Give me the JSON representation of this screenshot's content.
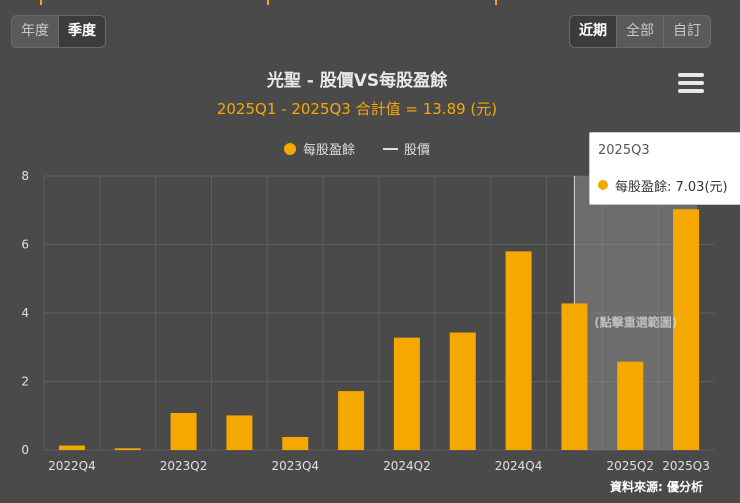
{
  "period_toggle": {
    "items": [
      "年度",
      "季度"
    ],
    "active": 1
  },
  "range_toggle": {
    "items": [
      "近期",
      "全部",
      "自訂"
    ],
    "active": 0
  },
  "menu": {
    "icon": "hamburger-menu-icon"
  },
  "header": {
    "title": "光聖 - 股價VS每股盈餘",
    "subtitle": "2025Q1 - 2025Q3 合計值 = 13.89 (元)"
  },
  "tooltip": {
    "title": "2025Q3",
    "text": "每股盈餘: 7.03(元)"
  },
  "selection_hint": "(點擊重選範圍)",
  "source": "資料來源: 優分析",
  "colors": {
    "bar": "#f5a800",
    "background": "#4a4a4a",
    "grid": "#5e5e5e",
    "line": "#e0e0e0"
  },
  "chart_data": {
    "type": "bar",
    "categories": [
      "2022Q4",
      "2023Q1",
      "2023Q2",
      "2023Q3",
      "2023Q4",
      "2024Q1",
      "2024Q2",
      "2024Q3",
      "2024Q4",
      "2025Q1",
      "2025Q2",
      "2025Q3"
    ],
    "x_tick_labels": [
      "2022Q4",
      "",
      "2023Q2",
      "",
      "2023Q4",
      "",
      "2024Q2",
      "",
      "2024Q4",
      "",
      "2025Q2",
      "2025Q3"
    ],
    "series": [
      {
        "name": "每股盈餘",
        "values": [
          0.13,
          0.05,
          1.08,
          1.01,
          0.38,
          1.72,
          3.28,
          3.43,
          5.8,
          4.28,
          2.58,
          7.03
        ]
      }
    ],
    "legend": [
      "每股盈餘",
      "股價"
    ],
    "legend_position": "top-center",
    "ylim": [
      0,
      8
    ],
    "yticks": [
      0,
      2,
      4,
      6,
      8
    ],
    "grid": true,
    "highlight_range": [
      "2025Q1",
      "2025Q3"
    ]
  }
}
